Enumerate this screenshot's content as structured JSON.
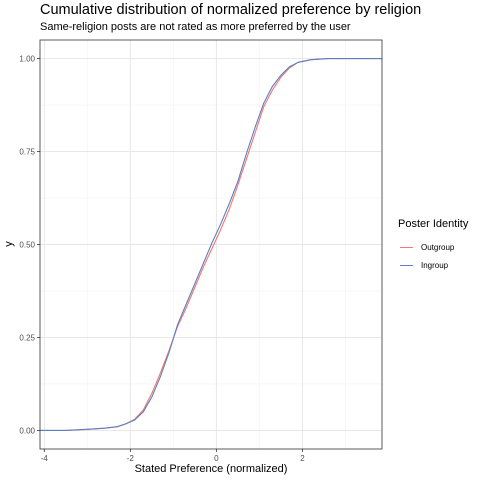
{
  "title": "Cumulative distribution of normalized preference by religion",
  "subtitle": "Same-religion posts are not rated as more preferred by the user",
  "legend": {
    "title": "Poster Identity",
    "items": [
      {
        "label": "Outgroup",
        "color": "#f8766d"
      },
      {
        "label": "Ingroup",
        "color": "#5a7fc3"
      }
    ]
  },
  "chart_data": {
    "type": "line",
    "title": "Cumulative distribution of normalized preference by religion",
    "subtitle": "Same-religion posts are not rated as more preferred by the user",
    "xlabel": "Stated Preference (normalized)",
    "ylabel": "y",
    "xlim": [
      -4.1,
      3.85
    ],
    "ylim": [
      -0.05,
      1.05
    ],
    "x_ticks": [
      -4,
      -2,
      0,
      2
    ],
    "x_tick_labels": [
      "-4",
      "-2",
      "0",
      "2"
    ],
    "y_ticks": [
      0,
      0.25,
      0.5,
      0.75,
      1
    ],
    "y_tick_labels": [
      "0.00",
      "0.25",
      "0.50",
      "0.75",
      "1.00"
    ],
    "grid": true,
    "legend_position": "right",
    "series": [
      {
        "name": "Outgroup",
        "color": "#f8766d",
        "x": [
          -4.1,
          -3.5,
          -3.0,
          -2.6,
          -2.3,
          -2.1,
          -1.9,
          -1.7,
          -1.5,
          -1.3,
          -1.1,
          -0.9,
          -0.7,
          -0.5,
          -0.3,
          -0.1,
          0.1,
          0.3,
          0.5,
          0.7,
          0.9,
          1.1,
          1.3,
          1.5,
          1.7,
          1.9,
          2.2,
          2.6,
          3.85
        ],
        "y": [
          0.0,
          0.0,
          0.003,
          0.006,
          0.01,
          0.018,
          0.03,
          0.055,
          0.1,
          0.155,
          0.215,
          0.28,
          0.33,
          0.385,
          0.44,
          0.49,
          0.54,
          0.595,
          0.66,
          0.73,
          0.8,
          0.87,
          0.915,
          0.95,
          0.975,
          0.99,
          0.997,
          1.0,
          1.0
        ]
      },
      {
        "name": "Ingroup",
        "color": "#5a7fc3",
        "x": [
          -4.1,
          -3.5,
          -3.0,
          -2.6,
          -2.3,
          -2.1,
          -1.9,
          -1.7,
          -1.5,
          -1.3,
          -1.1,
          -0.9,
          -0.7,
          -0.5,
          -0.3,
          -0.1,
          0.1,
          0.3,
          0.5,
          0.7,
          0.9,
          1.1,
          1.3,
          1.5,
          1.7,
          1.9,
          2.2,
          2.6,
          3.85
        ],
        "y": [
          0.0,
          0.0,
          0.003,
          0.006,
          0.01,
          0.018,
          0.028,
          0.05,
          0.09,
          0.145,
          0.21,
          0.285,
          0.34,
          0.395,
          0.45,
          0.505,
          0.555,
          0.61,
          0.67,
          0.745,
          0.815,
          0.88,
          0.925,
          0.955,
          0.978,
          0.99,
          0.997,
          1.0,
          1.0
        ]
      }
    ]
  }
}
